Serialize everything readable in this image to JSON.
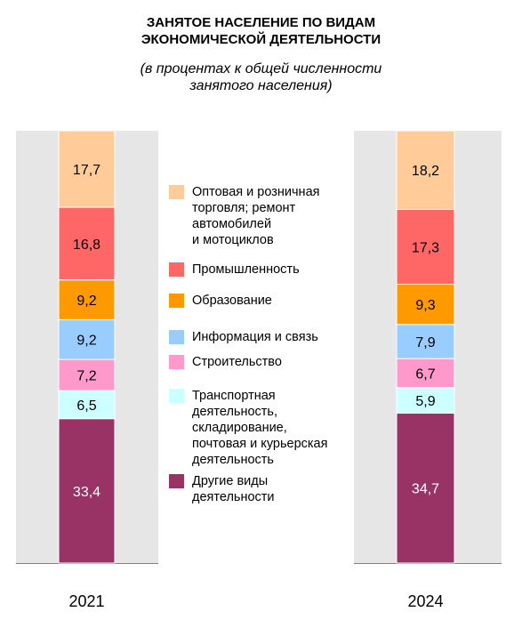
{
  "title_line1": "ЗАНЯТОЕ НАСЕЛЕНИЕ ПО ВИДАМ",
  "title_line2": "ЭКОНОМИЧЕСКОЙ ДЕЯТЕЛЬНОСТИ",
  "subtitle_line1": "(в процентах к общей численности",
  "subtitle_line2": "занятого населения)",
  "chart_data": {
    "type": "bar",
    "stacked": true,
    "categories": [
      "2021",
      "2024"
    ],
    "ylim": [
      0,
      100
    ],
    "series": [
      {
        "name": "Другие виды\nдеятельности",
        "color": "#993366",
        "text_color": "#ffffff",
        "values": [
          33.4,
          34.7
        ],
        "labels": [
          "33,4",
          "34,7"
        ]
      },
      {
        "name": "Транспортная\nдеятельность,\nскладирование,\nпочтовая и курьерская\nдеятельность",
        "color": "#ccffff",
        "text_color": "#000000",
        "values": [
          6.5,
          5.9
        ],
        "labels": [
          "6,5",
          "5,9"
        ]
      },
      {
        "name": "Строительство",
        "color": "#ff99cc",
        "text_color": "#000000",
        "values": [
          7.2,
          6.7
        ],
        "labels": [
          "7,2",
          "6,7"
        ]
      },
      {
        "name": "Информация и связь",
        "color": "#99ccff",
        "text_color": "#000000",
        "values": [
          9.2,
          7.9
        ],
        "labels": [
          "9,2",
          "7,9"
        ]
      },
      {
        "name": "Образование",
        "color": "#ff9900",
        "text_color": "#000000",
        "values": [
          9.2,
          9.3
        ],
        "labels": [
          "9,2",
          "9,3"
        ]
      },
      {
        "name": "Промышленность",
        "color": "#ff6666",
        "text_color": "#000000",
        "values": [
          16.8,
          17.3
        ],
        "labels": [
          "16,8",
          "17,3"
        ]
      },
      {
        "name": "Оптовая и розничная\nторговля; ремонт\nавтомобилей\nи мотоциклов",
        "color": "#ffcc99",
        "text_color": "#000000",
        "values": [
          17.7,
          18.2
        ],
        "labels": [
          "17,7",
          "18,2"
        ]
      }
    ],
    "background_color": "#e6e6e6"
  }
}
